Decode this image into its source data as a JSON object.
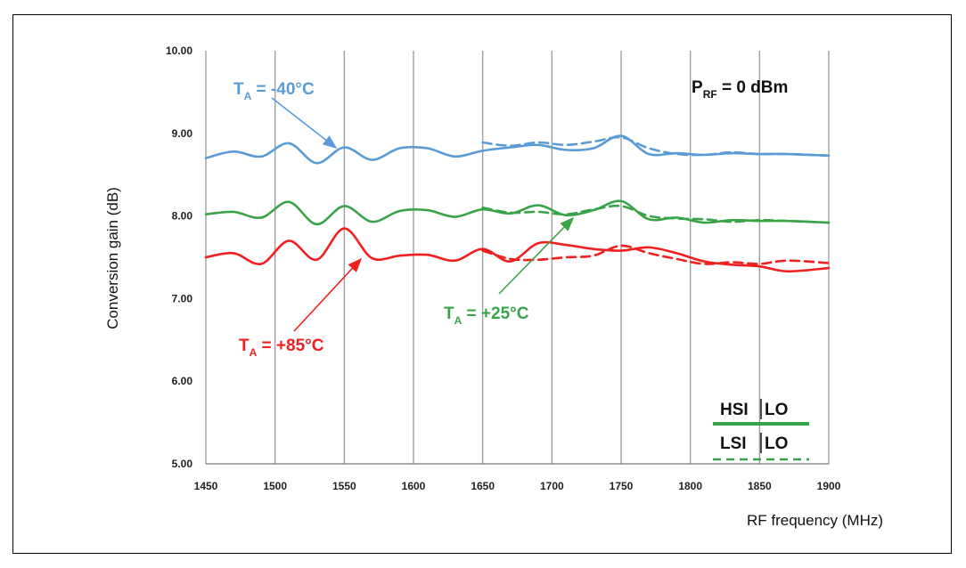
{
  "chart_data": {
    "type": "line",
    "xlabel": "RF frequency (MHz)",
    "ylabel": "Conversion gain (dB)",
    "xlim": [
      1450,
      1900
    ],
    "ylim": [
      5.0,
      10.0
    ],
    "x_ticks": [
      "1450",
      "1500",
      "1550",
      "1600",
      "1650",
      "1700",
      "1750",
      "1800",
      "1850",
      "1900"
    ],
    "y_ticks": [
      "5.00",
      "6.00",
      "7.00",
      "8.00",
      "9.00",
      "10.00"
    ],
    "grid": "vertical",
    "colors": {
      "cold": "#5b9bd5",
      "room": "#3aa34a",
      "hot": "#ef2020"
    },
    "series": [
      {
        "temp": "cold",
        "style": "solid",
        "x": [
          1450,
          1470,
          1490,
          1510,
          1530,
          1550,
          1570,
          1590,
          1610,
          1630,
          1650,
          1670,
          1690,
          1710,
          1730,
          1750,
          1770,
          1790,
          1810,
          1830,
          1850,
          1870,
          1900
        ],
        "y": [
          8.7,
          8.78,
          8.72,
          8.88,
          8.64,
          8.83,
          8.68,
          8.82,
          8.82,
          8.72,
          8.79,
          8.83,
          8.86,
          8.8,
          8.82,
          8.97,
          8.75,
          8.76,
          8.74,
          8.76,
          8.75,
          8.75,
          8.73
        ]
      },
      {
        "temp": "cold",
        "style": "dashed",
        "x": [
          1650,
          1670,
          1690,
          1710,
          1730,
          1750,
          1770,
          1790,
          1810,
          1830,
          1850,
          1870,
          1900
        ],
        "y": [
          8.89,
          8.85,
          8.89,
          8.86,
          8.9,
          8.95,
          8.82,
          8.75,
          8.74,
          8.77,
          8.75,
          8.75,
          8.73
        ]
      },
      {
        "temp": "room",
        "style": "solid",
        "x": [
          1450,
          1470,
          1490,
          1510,
          1530,
          1550,
          1570,
          1590,
          1610,
          1630,
          1650,
          1670,
          1690,
          1710,
          1730,
          1750,
          1770,
          1790,
          1810,
          1830,
          1850,
          1870,
          1900
        ],
        "y": [
          8.02,
          8.05,
          7.98,
          8.17,
          7.9,
          8.12,
          7.93,
          8.06,
          8.07,
          7.99,
          8.08,
          8.03,
          8.13,
          8.01,
          8.07,
          8.18,
          7.96,
          7.98,
          7.92,
          7.95,
          7.94,
          7.94,
          7.92
        ]
      },
      {
        "temp": "room",
        "style": "dashed",
        "x": [
          1650,
          1670,
          1690,
          1710,
          1730,
          1750,
          1770,
          1790,
          1810,
          1830,
          1850,
          1870,
          1900
        ],
        "y": [
          8.1,
          8.04,
          8.05,
          8.02,
          8.08,
          8.12,
          8.0,
          7.97,
          7.96,
          7.93,
          7.95,
          7.94,
          7.92
        ]
      },
      {
        "temp": "hot",
        "style": "solid",
        "x": [
          1450,
          1470,
          1490,
          1510,
          1530,
          1550,
          1570,
          1590,
          1610,
          1630,
          1650,
          1670,
          1690,
          1710,
          1730,
          1750,
          1770,
          1790,
          1810,
          1830,
          1850,
          1870,
          1900
        ],
        "y": [
          7.5,
          7.55,
          7.42,
          7.7,
          7.47,
          7.85,
          7.49,
          7.52,
          7.53,
          7.46,
          7.6,
          7.45,
          7.67,
          7.65,
          7.6,
          7.58,
          7.62,
          7.55,
          7.45,
          7.41,
          7.39,
          7.33,
          7.37
        ]
      },
      {
        "temp": "hot",
        "style": "dashed",
        "x": [
          1650,
          1670,
          1690,
          1710,
          1730,
          1750,
          1770,
          1790,
          1810,
          1830,
          1850,
          1870,
          1900
        ],
        "y": [
          7.58,
          7.48,
          7.47,
          7.5,
          7.52,
          7.64,
          7.55,
          7.48,
          7.42,
          7.44,
          7.42,
          7.46,
          7.43
        ]
      }
    ],
    "annotations": {
      "cold": {
        "main": "T",
        "sub": "A",
        "rest": " = -40°C"
      },
      "room": {
        "main": "T",
        "sub": "A",
        "rest": " = +25°C"
      },
      "hot": {
        "main": "T",
        "sub": "A",
        "rest": " = +85°C"
      },
      "power": {
        "main": "P",
        "sub": "RF",
        "rest": " = 0 dBm"
      }
    },
    "legend": {
      "position": "bottom-right",
      "solid": {
        "left": "HSI",
        "right": "LO"
      },
      "dashed": {
        "left": "LSI",
        "right": "LO"
      }
    }
  }
}
